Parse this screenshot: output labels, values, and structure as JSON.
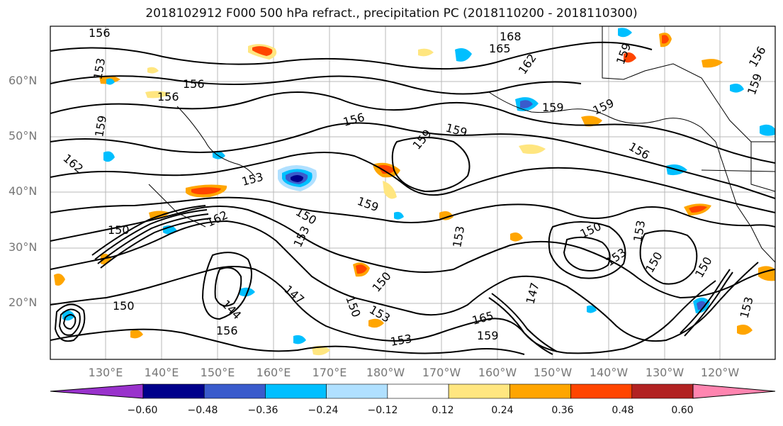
{
  "title": "2018102912 F000 500 hPa refract., precipitation PC (2018110200 - 2018110300)",
  "latitude_labels": [
    "60°N",
    "50°N",
    "40°N",
    "30°N",
    "20°N"
  ],
  "longitude_labels": [
    "130°E",
    "140°E",
    "150°E",
    "160°E",
    "170°E",
    "180°W",
    "170°W",
    "160°W",
    "150°W",
    "140°W",
    "130°W",
    "120°W"
  ],
  "colorbar": {
    "tick_labels": [
      "−0.60",
      "−0.48",
      "−0.36",
      "−0.24",
      "−0.12",
      "0.12",
      "0.24",
      "0.36",
      "0.48",
      "0.60"
    ],
    "colors": [
      "#9932cc",
      "#00008b",
      "#3a5bcc",
      "#00bfff",
      "#b0e0ff",
      "#ffffff",
      "#ffe680",
      "#ffa500",
      "#ff4500",
      "#b22222",
      "#ff85b0"
    ]
  },
  "contour_labels": [
    "156",
    "168",
    "165",
    "153",
    "159",
    "156",
    "162",
    "156",
    "159",
    "156",
    "159",
    "159",
    "159",
    "162",
    "153",
    "156",
    "159",
    "159",
    "156",
    "153",
    "159",
    "150",
    "162",
    "150",
    "153",
    "153",
    "150",
    "150",
    "147",
    "150",
    "153",
    "144",
    "150",
    "153",
    "150",
    "156",
    "165",
    "159",
    "147",
    "153",
    "150",
    "153"
  ]
}
